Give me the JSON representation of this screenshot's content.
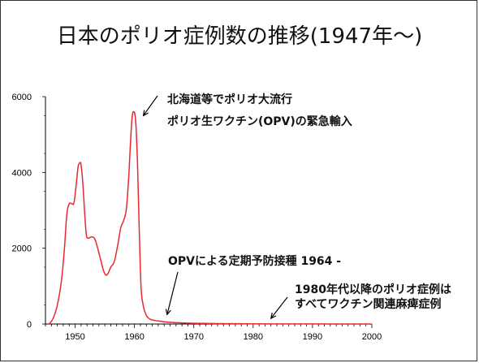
{
  "title": "日本のポリオ症例数の推移(1947年〜)",
  "colors": {
    "series": "#e8282e",
    "axis": "#000000",
    "annotation_arrow": "#000000"
  },
  "chart_data": {
    "type": "line",
    "title": "日本のポリオ症例数の推移(1947年〜)",
    "xlabel": "",
    "ylabel": "",
    "xlim": [
      1945,
      2000
    ],
    "ylim": [
      0,
      6000
    ],
    "x_ticks": [
      1950,
      1960,
      1970,
      1980,
      1990,
      2000
    ],
    "y_ticks": [
      0,
      2000,
      4000,
      6000
    ],
    "grid": false,
    "series": [
      {
        "x": [
          1945.6,
          1946.3,
          1947,
          1947.7,
          1948.2,
          1948.6,
          1949.0,
          1949.4,
          1949.8,
          1950.2,
          1950.5,
          1950.8,
          1951.0,
          1951.3,
          1951.6,
          1951.9,
          1952.3,
          1952.8,
          1953.3,
          1953.8,
          1954.3,
          1954.8,
          1955.2,
          1955.6,
          1956.0,
          1956.6,
          1957.2,
          1957.7,
          1958.1,
          1958.6,
          1959.0,
          1959.3,
          1959.6,
          1959.9,
          1960.2,
          1960.5,
          1960.8,
          1961.1,
          1961.4,
          1961.7,
          1962.1,
          1962.6,
          1963.2,
          1964,
          1965,
          1966,
          1968,
          1970,
          1975,
          1980,
          1985,
          1990,
          2000
        ],
        "y": [
          0,
          150,
          500,
          1150,
          2000,
          2900,
          3170,
          3180,
          3200,
          3700,
          4150,
          4250,
          4200,
          3700,
          2950,
          2350,
          2270,
          2300,
          2250,
          2000,
          1700,
          1400,
          1290,
          1350,
          1500,
          1650,
          2100,
          2550,
          2700,
          3000,
          3800,
          4700,
          5450,
          5600,
          5350,
          4300,
          2500,
          1000,
          550,
          350,
          200,
          130,
          100,
          80,
          60,
          45,
          30,
          20,
          10,
          5,
          3,
          2,
          0
        ]
      }
    ],
    "annotations": [
      {
        "lines": [
          "北海道等でポリオ大流行",
          "ポリオ生ワクチン(OPV)の緊急輸入"
        ],
        "arrow_to": {
          "x": 1961.5,
          "y": 5500
        }
      },
      {
        "lines": [
          "OPVによる定期予防接種 1964 -"
        ],
        "arrow_to": {
          "x": 1965.5,
          "y": 250
        }
      },
      {
        "lines": [
          "1980年代以降のポリオ症例は",
          "すべてワクチン関連麻痺症例"
        ],
        "arrow_to": {
          "x": 1983,
          "y": 150
        }
      }
    ]
  }
}
